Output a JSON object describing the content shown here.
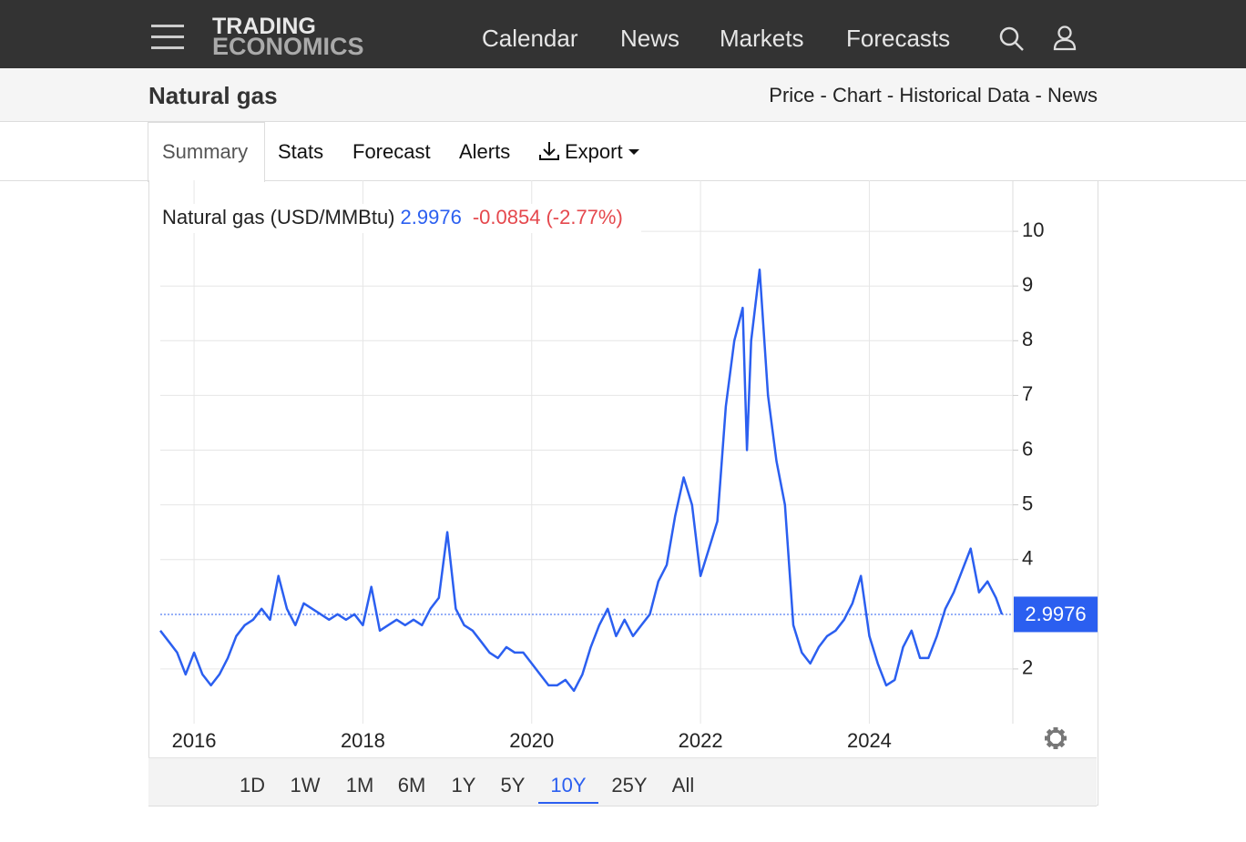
{
  "nav": {
    "brand_top": "TRADING",
    "brand_bottom": "ECONOMICS",
    "links": [
      "Calendar",
      "News",
      "Markets",
      "Forecasts"
    ]
  },
  "header": {
    "title": "Natural gas",
    "separator": "-",
    "links": [
      "Price",
      "Chart",
      "Historical Data",
      "News"
    ]
  },
  "tabs": [
    "Summary",
    "Stats",
    "Forecast",
    "Alerts",
    "Export"
  ],
  "ranges": [
    "1D",
    "1W",
    "1M",
    "6M",
    "1Y",
    "5Y",
    "10Y",
    "25Y",
    "All"
  ],
  "chart_data": {
    "type": "line",
    "title": "Natural gas (USD/MMBtu)",
    "last": 2.9976,
    "change": -0.0854,
    "change_percent": "(-2.77%)",
    "color": "#2b5ff0",
    "grid": true,
    "x": [
      2015.6,
      2015.7,
      2015.8,
      2015.9,
      2016.0,
      2016.1,
      2016.2,
      2016.3,
      2016.4,
      2016.5,
      2016.6,
      2016.7,
      2016.8,
      2016.9,
      2017.0,
      2017.1,
      2017.2,
      2017.3,
      2017.4,
      2017.5,
      2017.6,
      2017.7,
      2017.8,
      2017.9,
      2018.0,
      2018.1,
      2018.2,
      2018.3,
      2018.4,
      2018.5,
      2018.6,
      2018.7,
      2018.8,
      2018.9,
      2019.0,
      2019.1,
      2019.2,
      2019.3,
      2019.4,
      2019.5,
      2019.6,
      2019.7,
      2019.8,
      2019.9,
      2020.0,
      2020.1,
      2020.2,
      2020.3,
      2020.4,
      2020.5,
      2020.6,
      2020.7,
      2020.8,
      2020.9,
      2021.0,
      2021.1,
      2021.2,
      2021.3,
      2021.4,
      2021.5,
      2021.6,
      2021.7,
      2021.8,
      2021.9,
      2022.0,
      2022.1,
      2022.2,
      2022.3,
      2022.4,
      2022.5,
      2022.55,
      2022.6,
      2022.7,
      2022.8,
      2022.9,
      2023.0,
      2023.1,
      2023.2,
      2023.3,
      2023.4,
      2023.5,
      2023.6,
      2023.7,
      2023.8,
      2023.9,
      2024.0,
      2024.1,
      2024.2,
      2024.3,
      2024.4,
      2024.5,
      2024.6,
      2024.7,
      2024.8,
      2024.9,
      2025.0,
      2025.1,
      2025.2,
      2025.3,
      2025.4,
      2025.5,
      2025.57
    ],
    "values": [
      2.7,
      2.5,
      2.3,
      1.9,
      2.3,
      1.9,
      1.7,
      1.9,
      2.2,
      2.6,
      2.8,
      2.9,
      3.1,
      2.9,
      3.7,
      3.1,
      2.8,
      3.2,
      3.1,
      3.0,
      2.9,
      3.0,
      2.9,
      3.0,
      2.8,
      3.5,
      2.7,
      2.8,
      2.9,
      2.8,
      2.9,
      2.8,
      3.1,
      3.3,
      4.5,
      3.1,
      2.8,
      2.7,
      2.5,
      2.3,
      2.2,
      2.4,
      2.3,
      2.3,
      2.1,
      1.9,
      1.7,
      1.7,
      1.8,
      1.6,
      1.9,
      2.4,
      2.8,
      3.1,
      2.6,
      2.9,
      2.6,
      2.8,
      3.0,
      3.6,
      3.9,
      4.8,
      5.5,
      5.0,
      3.7,
      4.2,
      4.7,
      6.8,
      8.0,
      8.6,
      6.0,
      8.0,
      9.3,
      7.0,
      5.8,
      5.0,
      2.8,
      2.3,
      2.1,
      2.4,
      2.6,
      2.7,
      2.9,
      3.2,
      3.7,
      2.6,
      2.1,
      1.7,
      1.8,
      2.4,
      2.7,
      2.2,
      2.2,
      2.6,
      3.1,
      3.4,
      3.8,
      4.2,
      3.4,
      3.6,
      3.3,
      2.9976
    ],
    "xlim": [
      2015.6,
      2025.7
    ],
    "xticks": [
      2016,
      2018,
      2020,
      2022,
      2024
    ],
    "ylim": [
      1,
      10.9
    ],
    "yticks": [
      2,
      4,
      5,
      6,
      7,
      8,
      9,
      10
    ]
  }
}
